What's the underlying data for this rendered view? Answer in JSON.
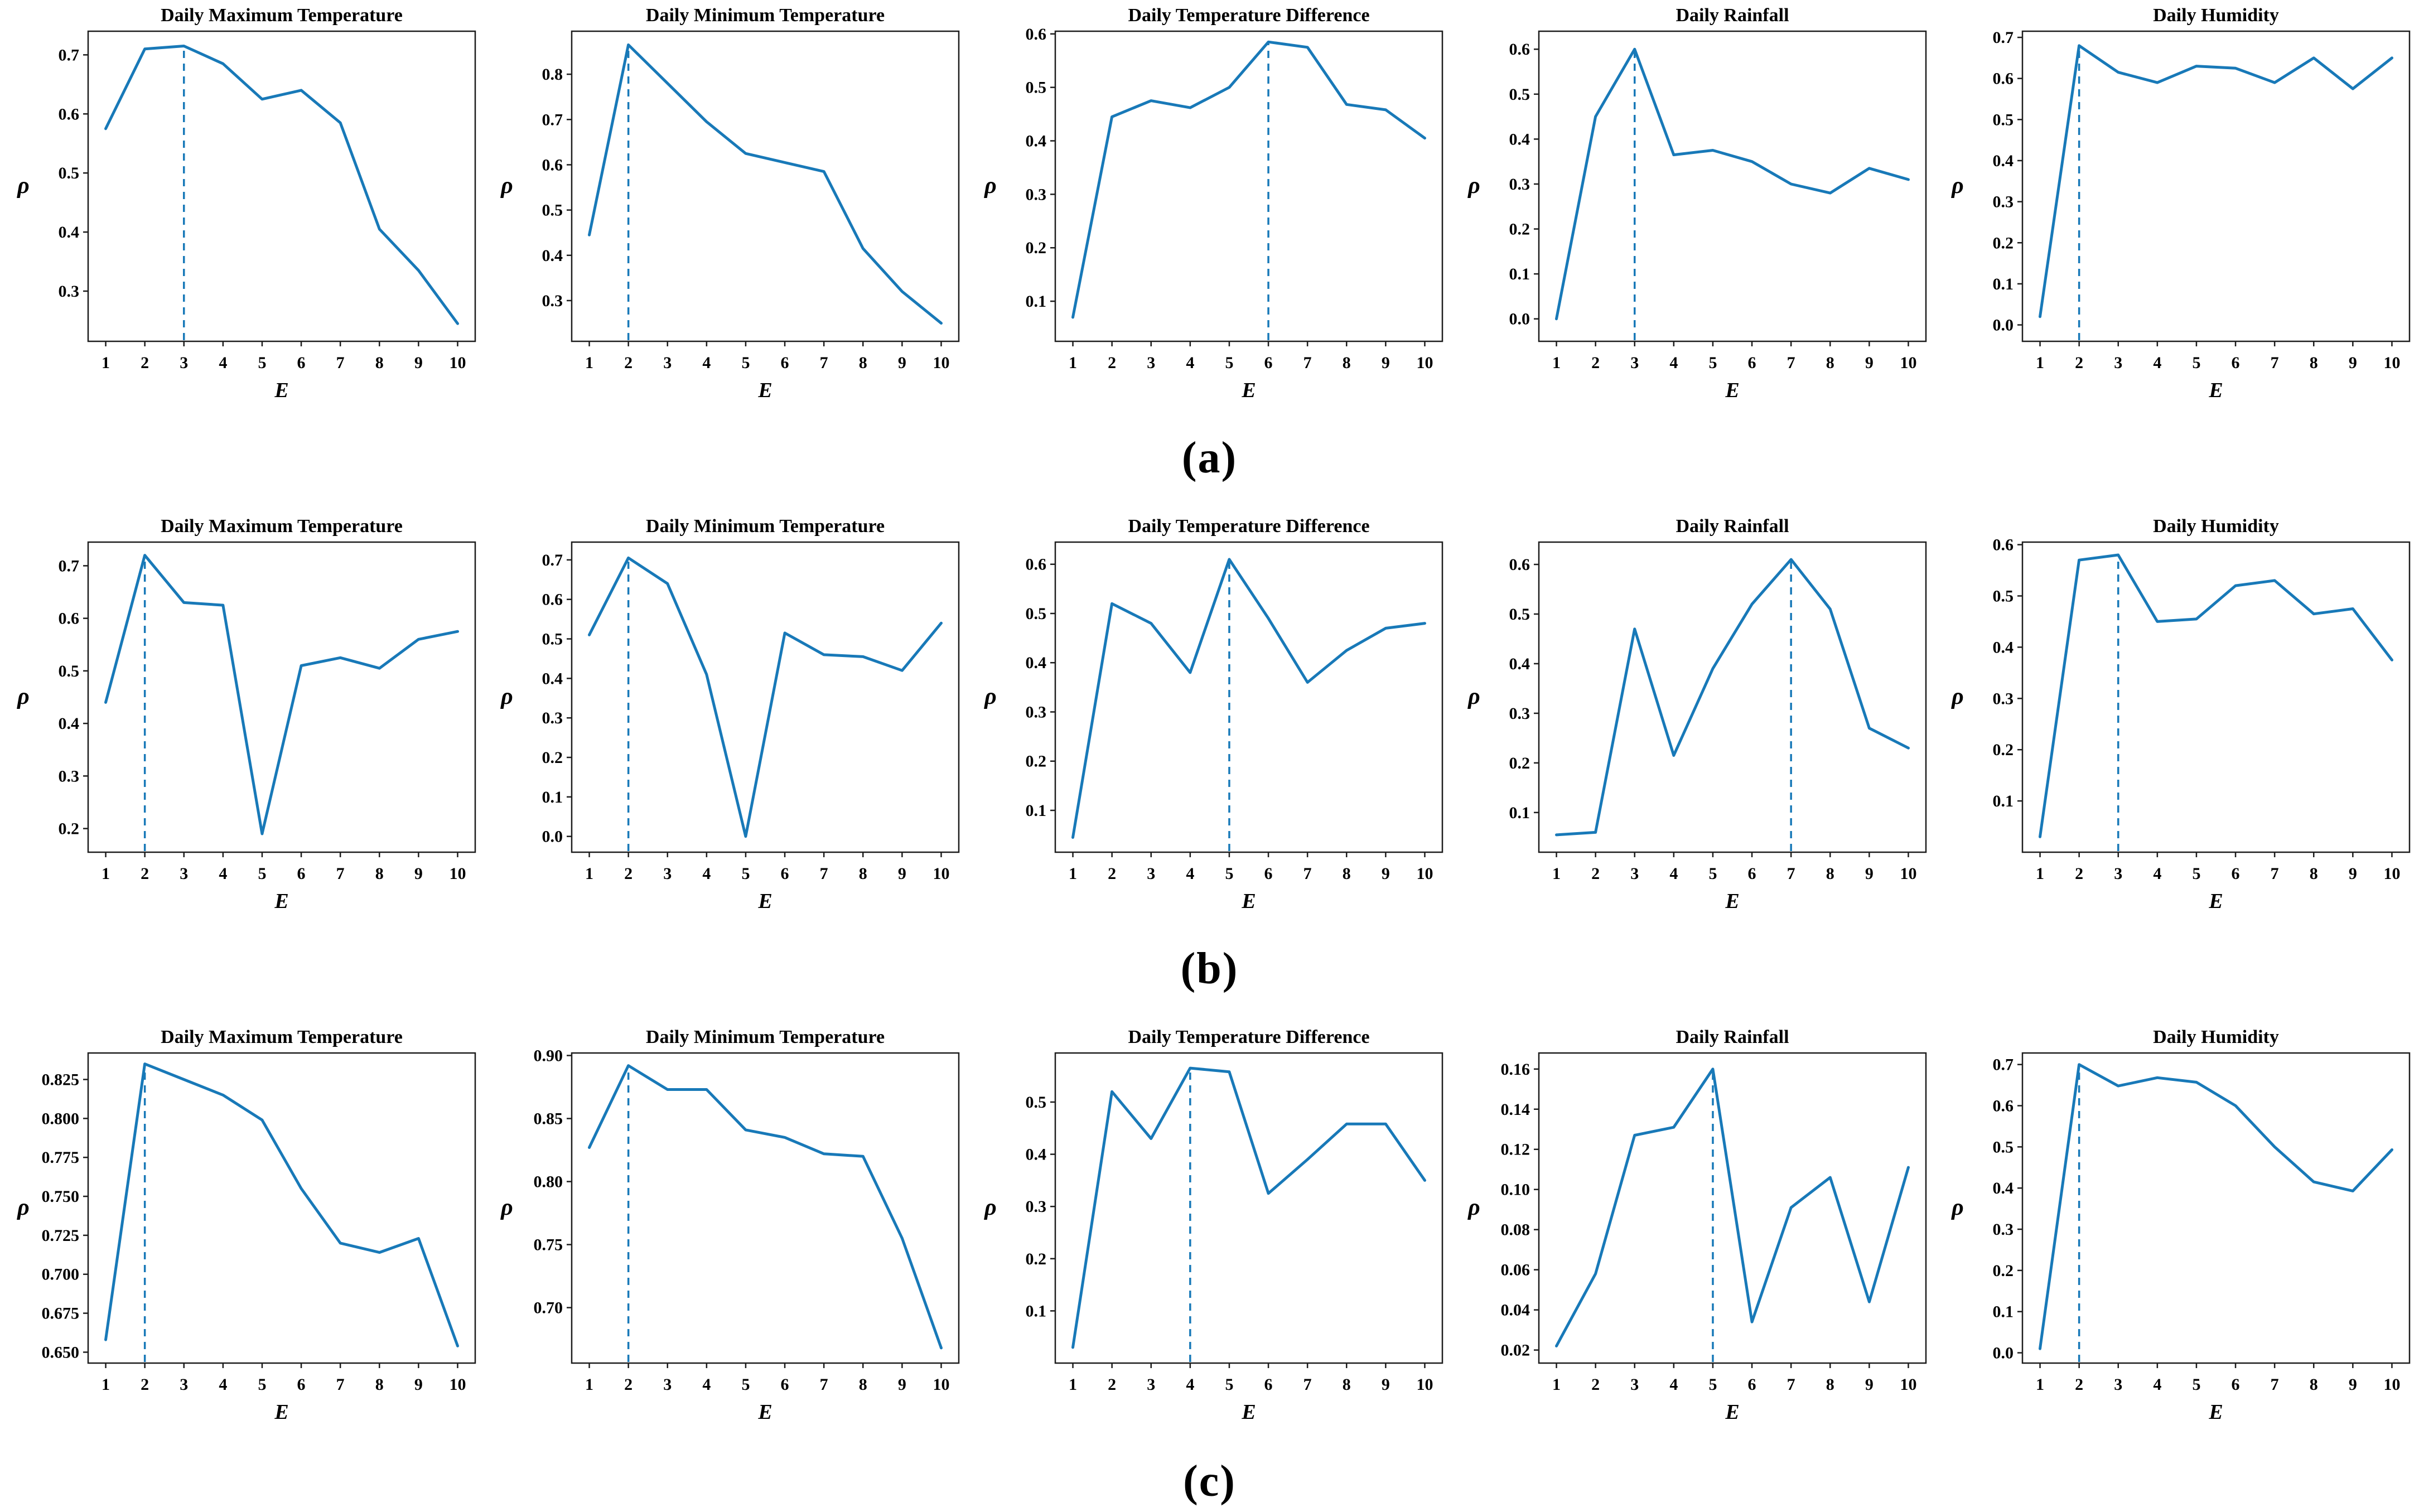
{
  "figure": {
    "line_color": "#1879b8",
    "axis_color": "#1d1d1d",
    "text_color": "#000000",
    "background": "#ffffff",
    "xlabel": "E",
    "ylabel": "ρ"
  },
  "rows": [
    {
      "id": "a",
      "label": "(a)"
    },
    {
      "id": "b",
      "label": "(b)"
    },
    {
      "id": "c",
      "label": "(c)"
    }
  ],
  "chart_data": [
    {
      "type": "line",
      "row": "a",
      "title": "Daily Maximum Temperature",
      "xlabel": "E",
      "ylabel": "ρ",
      "x": [
        1,
        2,
        3,
        4,
        5,
        6,
        7,
        8,
        9,
        10
      ],
      "values": [
        0.575,
        0.71,
        0.715,
        0.685,
        0.625,
        0.64,
        0.585,
        0.405,
        0.335,
        0.245
      ],
      "best_E": 3,
      "yticks": [
        "0.3",
        "0.4",
        "0.5",
        "0.6",
        "0.7"
      ],
      "ylim": [
        0.215,
        0.74
      ],
      "grid": false,
      "legend": "none"
    },
    {
      "type": "line",
      "row": "a",
      "title": "Daily Minimum Temperature",
      "xlabel": "E",
      "ylabel": "ρ",
      "x": [
        1,
        2,
        3,
        4,
        5,
        6,
        7,
        8,
        9,
        10
      ],
      "values": [
        0.445,
        0.865,
        0.78,
        0.695,
        0.625,
        0.605,
        0.585,
        0.415,
        0.32,
        0.25
      ],
      "best_E": 2,
      "yticks": [
        "0.3",
        "0.4",
        "0.5",
        "0.6",
        "0.7",
        "0.8"
      ],
      "ylim": [
        0.21,
        0.895
      ],
      "grid": false,
      "legend": "none"
    },
    {
      "type": "line",
      "row": "a",
      "title": "Daily Temperature Difference",
      "xlabel": "E",
      "ylabel": "ρ",
      "x": [
        1,
        2,
        3,
        4,
        5,
        6,
        7,
        8,
        9,
        10
      ],
      "values": [
        0.07,
        0.445,
        0.475,
        0.462,
        0.5,
        0.585,
        0.575,
        0.468,
        0.458,
        0.405
      ],
      "best_E": 6,
      "yticks": [
        "0.1",
        "0.2",
        "0.3",
        "0.4",
        "0.5",
        "0.6"
      ],
      "ylim": [
        0.025,
        0.605
      ],
      "grid": false,
      "legend": "none"
    },
    {
      "type": "line",
      "row": "a",
      "title": "Daily Rainfall",
      "xlabel": "E",
      "ylabel": "ρ",
      "x": [
        1,
        2,
        3,
        4,
        5,
        6,
        7,
        8,
        9,
        10
      ],
      "values": [
        0.0,
        0.45,
        0.6,
        0.365,
        0.375,
        0.35,
        0.3,
        0.28,
        0.335,
        0.31
      ],
      "best_E": 3,
      "yticks": [
        "0.0",
        "0.1",
        "0.2",
        "0.3",
        "0.4",
        "0.5",
        "0.6"
      ],
      "ylim": [
        -0.05,
        0.64
      ],
      "grid": false,
      "legend": "none"
    },
    {
      "type": "line",
      "row": "a",
      "title": "Daily Humidity",
      "xlabel": "E",
      "ylabel": "ρ",
      "x": [
        1,
        2,
        3,
        4,
        5,
        6,
        7,
        8,
        9,
        10
      ],
      "values": [
        0.02,
        0.68,
        0.615,
        0.59,
        0.63,
        0.625,
        0.59,
        0.65,
        0.575,
        0.65
      ],
      "best_E": 2,
      "yticks": [
        "0.0",
        "0.1",
        "0.2",
        "0.3",
        "0.4",
        "0.5",
        "0.6",
        "0.7"
      ],
      "ylim": [
        -0.04,
        0.715
      ],
      "grid": false,
      "legend": "none"
    },
    {
      "type": "line",
      "row": "b",
      "title": "Daily Maximum Temperature",
      "xlabel": "E",
      "ylabel": "ρ",
      "x": [
        1,
        2,
        3,
        4,
        5,
        6,
        7,
        8,
        9,
        10
      ],
      "values": [
        0.44,
        0.72,
        0.63,
        0.625,
        0.19,
        0.51,
        0.525,
        0.505,
        0.56,
        0.575
      ],
      "best_E": 2,
      "yticks": [
        "0.2",
        "0.3",
        "0.4",
        "0.5",
        "0.6",
        "0.7"
      ],
      "ylim": [
        0.155,
        0.745
      ],
      "grid": false,
      "legend": "none"
    },
    {
      "type": "line",
      "row": "b",
      "title": "Daily Minimum Temperature",
      "xlabel": "E",
      "ylabel": "ρ",
      "x": [
        1,
        2,
        3,
        4,
        5,
        6,
        7,
        8,
        9,
        10
      ],
      "values": [
        0.51,
        0.705,
        0.64,
        0.41,
        0.0,
        0.515,
        0.46,
        0.455,
        0.42,
        0.54
      ],
      "best_E": 2,
      "yticks": [
        "0.0",
        "0.1",
        "0.2",
        "0.3",
        "0.4",
        "0.5",
        "0.6",
        "0.7"
      ],
      "ylim": [
        -0.04,
        0.745
      ],
      "grid": false,
      "legend": "none"
    },
    {
      "type": "line",
      "row": "b",
      "title": "Daily Temperature Difference",
      "xlabel": "E",
      "ylabel": "ρ",
      "x": [
        1,
        2,
        3,
        4,
        5,
        6,
        7,
        8,
        9,
        10
      ],
      "values": [
        0.045,
        0.52,
        0.48,
        0.38,
        0.61,
        0.49,
        0.36,
        0.425,
        0.47,
        0.48
      ],
      "best_E": 5,
      "yticks": [
        "0.1",
        "0.2",
        "0.3",
        "0.4",
        "0.5",
        "0.6"
      ],
      "ylim": [
        0.015,
        0.645
      ],
      "grid": false,
      "legend": "none"
    },
    {
      "type": "line",
      "row": "b",
      "title": "Daily Rainfall",
      "xlabel": "E",
      "ylabel": "ρ",
      "x": [
        1,
        2,
        3,
        4,
        5,
        6,
        7,
        8,
        9,
        10
      ],
      "values": [
        0.055,
        0.06,
        0.47,
        0.215,
        0.39,
        0.52,
        0.61,
        0.51,
        0.27,
        0.23
      ],
      "best_E": 7,
      "yticks": [
        "0.1",
        "0.2",
        "0.3",
        "0.4",
        "0.5",
        "0.6"
      ],
      "ylim": [
        0.02,
        0.645
      ],
      "grid": false,
      "legend": "none"
    },
    {
      "type": "line",
      "row": "b",
      "title": "Daily Humidity",
      "xlabel": "E",
      "ylabel": "ρ",
      "x": [
        1,
        2,
        3,
        4,
        5,
        6,
        7,
        8,
        9,
        10
      ],
      "values": [
        0.03,
        0.57,
        0.58,
        0.45,
        0.455,
        0.52,
        0.53,
        0.465,
        0.475,
        0.375
      ],
      "best_E": 3,
      "yticks": [
        "0.1",
        "0.2",
        "0.3",
        "0.4",
        "0.5",
        "0.6"
      ],
      "ylim": [
        0.0,
        0.605
      ],
      "grid": false,
      "legend": "none"
    },
    {
      "type": "line",
      "row": "c",
      "title": "Daily Maximum Temperature",
      "xlabel": "E",
      "ylabel": "ρ",
      "x": [
        1,
        2,
        3,
        4,
        5,
        6,
        7,
        8,
        9,
        10
      ],
      "values": [
        0.658,
        0.835,
        0.825,
        0.815,
        0.799,
        0.755,
        0.72,
        0.714,
        0.723,
        0.654
      ],
      "best_E": 2,
      "yticks": [
        "0.650",
        "0.675",
        "0.700",
        "0.725",
        "0.750",
        "0.775",
        "0.800",
        "0.825"
      ],
      "ylim": [
        0.643,
        0.842
      ],
      "grid": false,
      "legend": "none"
    },
    {
      "type": "line",
      "row": "c",
      "title": "Daily Minimum Temperature",
      "xlabel": "E",
      "ylabel": "ρ",
      "x": [
        1,
        2,
        3,
        4,
        5,
        6,
        7,
        8,
        9,
        10
      ],
      "values": [
        0.827,
        0.892,
        0.873,
        0.873,
        0.841,
        0.835,
        0.822,
        0.82,
        0.755,
        0.668
      ],
      "best_E": 2,
      "yticks": [
        "0.70",
        "0.75",
        "0.80",
        "0.85",
        "0.90"
      ],
      "ylim": [
        0.656,
        0.902
      ],
      "grid": false,
      "legend": "none"
    },
    {
      "type": "line",
      "row": "c",
      "title": "Daily Temperature Difference",
      "xlabel": "E",
      "ylabel": "ρ",
      "x": [
        1,
        2,
        3,
        4,
        5,
        6,
        7,
        8,
        9,
        10
      ],
      "values": [
        0.03,
        0.52,
        0.43,
        0.565,
        0.558,
        0.325,
        0.39,
        0.458,
        0.458,
        0.35
      ],
      "best_E": 4,
      "yticks": [
        "0.1",
        "0.2",
        "0.3",
        "0.4",
        "0.5"
      ],
      "ylim": [
        0.0,
        0.594
      ],
      "grid": false,
      "legend": "none"
    },
    {
      "type": "line",
      "row": "c",
      "title": "Daily Rainfall",
      "xlabel": "E",
      "ylabel": "ρ",
      "x": [
        1,
        2,
        3,
        4,
        5,
        6,
        7,
        8,
        9,
        10
      ],
      "values": [
        0.022,
        0.058,
        0.127,
        0.131,
        0.16,
        0.034,
        0.091,
        0.106,
        0.044,
        0.111
      ],
      "best_E": 5,
      "yticks": [
        "0.02",
        "0.04",
        "0.06",
        "0.08",
        "0.10",
        "0.12",
        "0.14",
        "0.16"
      ],
      "ylim": [
        0.0135,
        0.168
      ],
      "grid": false,
      "legend": "none"
    },
    {
      "type": "line",
      "row": "c",
      "title": "Daily Humidity",
      "xlabel": "E",
      "ylabel": "ρ",
      "x": [
        1,
        2,
        3,
        4,
        5,
        6,
        7,
        8,
        9,
        10
      ],
      "values": [
        0.01,
        0.7,
        0.648,
        0.668,
        0.657,
        0.6,
        0.5,
        0.415,
        0.393,
        0.493
      ],
      "best_E": 2,
      "yticks": [
        "0.0",
        "0.1",
        "0.2",
        "0.3",
        "0.4",
        "0.5",
        "0.6",
        "0.7"
      ],
      "ylim": [
        -0.025,
        0.728
      ],
      "grid": false,
      "legend": "none"
    }
  ]
}
